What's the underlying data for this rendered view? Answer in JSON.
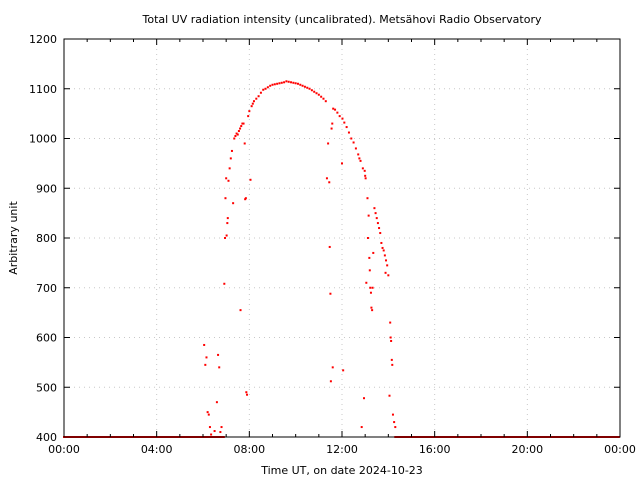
{
  "chart_data": {
    "type": "scatter",
    "title": "Total UV radiation intensity (uncalibrated). Metsähovi Radio Observatory",
    "xlabel": "Time UT, on date 2024-10-23",
    "ylabel": "Arbitrary unit",
    "xlim": [
      0,
      24
    ],
    "ylim": [
      400,
      1200
    ],
    "x_ticks": [
      {
        "value": 0,
        "label": "00:00"
      },
      {
        "value": 4,
        "label": "04:00"
      },
      {
        "value": 8,
        "label": "08:00"
      },
      {
        "value": 12,
        "label": "12:00"
      },
      {
        "value": 16,
        "label": "16:00"
      },
      {
        "value": 20,
        "label": "20:00"
      },
      {
        "value": 24,
        "label": "00:00"
      }
    ],
    "y_ticks": [
      {
        "value": 400,
        "label": "400"
      },
      {
        "value": 500,
        "label": "500"
      },
      {
        "value": 600,
        "label": "600"
      },
      {
        "value": 700,
        "label": "700"
      },
      {
        "value": 800,
        "label": "800"
      },
      {
        "value": 900,
        "label": "900"
      },
      {
        "value": 1000,
        "label": "1000"
      },
      {
        "value": 1100,
        "label": "1100"
      },
      {
        "value": 1200,
        "label": "1200"
      }
    ],
    "grid": true,
    "legend": "none",
    "marker_color": "#ff0000",
    "series": [
      {
        "points": [
          [
            6.05,
            585
          ],
          [
            6.1,
            545
          ],
          [
            6.15,
            560
          ],
          [
            6.2,
            450
          ],
          [
            6.25,
            445
          ],
          [
            6.3,
            420
          ],
          [
            6.35,
            405
          ],
          [
            6.5,
            412
          ],
          [
            6.6,
            470
          ],
          [
            6.65,
            565
          ],
          [
            6.7,
            540
          ],
          [
            6.75,
            410
          ],
          [
            6.8,
            420
          ],
          [
            6.92,
            708
          ],
          [
            6.95,
            800
          ],
          [
            6.97,
            880
          ],
          [
            7.0,
            920
          ],
          [
            7.02,
            805
          ],
          [
            7.05,
            830
          ],
          [
            7.07,
            840
          ],
          [
            7.1,
            915
          ],
          [
            7.15,
            940
          ],
          [
            7.2,
            960
          ],
          [
            7.25,
            975
          ],
          [
            7.3,
            870
          ],
          [
            7.35,
            1000
          ],
          [
            7.4,
            1005
          ],
          [
            7.45,
            1010
          ],
          [
            7.5,
            1008
          ],
          [
            7.55,
            1015
          ],
          [
            7.6,
            1020
          ],
          [
            7.62,
            655
          ],
          [
            7.65,
            1025
          ],
          [
            7.7,
            1030
          ],
          [
            7.75,
            1030
          ],
          [
            7.8,
            990
          ],
          [
            7.82,
            878
          ],
          [
            7.85,
            880
          ],
          [
            7.87,
            490
          ],
          [
            7.9,
            485
          ],
          [
            7.95,
            1045
          ],
          [
            8.0,
            1055
          ],
          [
            8.05,
            917
          ],
          [
            8.1,
            1065
          ],
          [
            8.15,
            1070
          ],
          [
            8.2,
            1075
          ],
          [
            8.3,
            1080
          ],
          [
            8.4,
            1085
          ],
          [
            8.5,
            1092
          ],
          [
            8.6,
            1098
          ],
          [
            8.7,
            1100
          ],
          [
            8.8,
            1103
          ],
          [
            8.9,
            1106
          ],
          [
            9.0,
            1108
          ],
          [
            9.1,
            1109
          ],
          [
            9.2,
            1110
          ],
          [
            9.3,
            1111
          ],
          [
            9.4,
            1112
          ],
          [
            9.5,
            1113
          ],
          [
            9.6,
            1115
          ],
          [
            9.7,
            1114
          ],
          [
            9.8,
            1113
          ],
          [
            9.9,
            1112
          ],
          [
            10.0,
            1111
          ],
          [
            10.1,
            1110
          ],
          [
            10.2,
            1108
          ],
          [
            10.3,
            1106
          ],
          [
            10.4,
            1104
          ],
          [
            10.5,
            1102
          ],
          [
            10.6,
            1100
          ],
          [
            10.7,
            1097
          ],
          [
            10.8,
            1094
          ],
          [
            10.9,
            1091
          ],
          [
            11.0,
            1088
          ],
          [
            11.1,
            1084
          ],
          [
            11.2,
            1080
          ],
          [
            11.3,
            1075
          ],
          [
            11.35,
            920
          ],
          [
            11.4,
            990
          ],
          [
            11.45,
            912
          ],
          [
            11.47,
            782
          ],
          [
            11.5,
            688
          ],
          [
            11.52,
            512
          ],
          [
            11.55,
            1020
          ],
          [
            11.58,
            1030
          ],
          [
            11.6,
            540
          ],
          [
            11.62,
            1060
          ],
          [
            11.7,
            1058
          ],
          [
            11.8,
            1052
          ],
          [
            11.9,
            1045
          ],
          [
            12.0,
            950
          ],
          [
            12.02,
            1040
          ],
          [
            12.05,
            534
          ],
          [
            12.1,
            1032
          ],
          [
            12.2,
            1023
          ],
          [
            12.3,
            1012
          ],
          [
            12.4,
            1000
          ],
          [
            12.5,
            992
          ],
          [
            12.6,
            980
          ],
          [
            12.7,
            968
          ],
          [
            12.75,
            960
          ],
          [
            12.8,
            955
          ],
          [
            12.85,
            420
          ],
          [
            12.9,
            940
          ],
          [
            12.95,
            478
          ],
          [
            12.98,
            935
          ],
          [
            13.0,
            925
          ],
          [
            13.02,
            920
          ],
          [
            13.05,
            710
          ],
          [
            13.1,
            880
          ],
          [
            13.12,
            800
          ],
          [
            13.15,
            845
          ],
          [
            13.18,
            760
          ],
          [
            13.2,
            735
          ],
          [
            13.22,
            700
          ],
          [
            13.25,
            690
          ],
          [
            13.27,
            660
          ],
          [
            13.3,
            655
          ],
          [
            13.32,
            700
          ],
          [
            13.35,
            770
          ],
          [
            13.4,
            860
          ],
          [
            13.45,
            850
          ],
          [
            13.5,
            840
          ],
          [
            13.55,
            830
          ],
          [
            13.6,
            820
          ],
          [
            13.65,
            810
          ],
          [
            13.7,
            790
          ],
          [
            13.75,
            780
          ],
          [
            13.8,
            775
          ],
          [
            13.85,
            765
          ],
          [
            13.88,
            730
          ],
          [
            13.9,
            755
          ],
          [
            13.95,
            745
          ],
          [
            14.0,
            725
          ],
          [
            14.05,
            483
          ],
          [
            14.08,
            630
          ],
          [
            14.1,
            600
          ],
          [
            14.12,
            593
          ],
          [
            14.15,
            555
          ],
          [
            14.17,
            545
          ],
          [
            14.2,
            445
          ],
          [
            14.25,
            430
          ],
          [
            14.3,
            420
          ]
        ]
      }
    ]
  }
}
